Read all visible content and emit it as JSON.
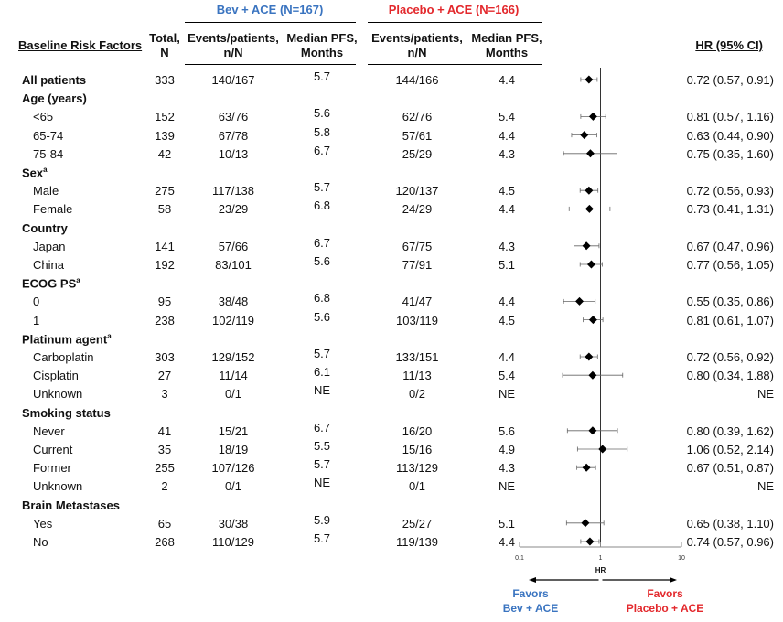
{
  "arms": {
    "bev_title": "Bev + ACE (N=167)",
    "placebo_title": "Placebo + ACE (N=166)",
    "bev_color": "#3a74c0",
    "placebo_color": "#e3282c"
  },
  "headers": {
    "factor": "Baseline Risk Factors",
    "total_line1": "Total,",
    "total_line2": "N",
    "events_line1": "Events/patients,",
    "events_line2": "n/N",
    "pfs_line1": "Median PFS,",
    "pfs_line2": "Months",
    "hr": "HR (95% CI)"
  },
  "rows": [
    {
      "label": "All patients",
      "group": true,
      "total": "333",
      "bev_events": "140/167",
      "bev_pfs": "5.7",
      "pl_events": "144/166",
      "pl_pfs": "4.4",
      "hr_text": "0.72 (0.57, 0.91)"
    },
    {
      "label": "Age (years)",
      "group": true,
      "total": "",
      "bev_events": "",
      "bev_pfs": "",
      "pl_events": "",
      "pl_pfs": "",
      "hr_text": ""
    },
    {
      "label": "<65",
      "group": false,
      "total": "152",
      "bev_events": "63/76",
      "bev_pfs": "5.6",
      "pl_events": "62/76",
      "pl_pfs": "5.4",
      "hr_text": "0.81 (0.57, 1.16)"
    },
    {
      "label": "65-74",
      "group": false,
      "total": "139",
      "bev_events": "67/78",
      "bev_pfs": "5.8",
      "pl_events": "57/61",
      "pl_pfs": "4.4",
      "hr_text": "0.63 (0.44, 0.90)"
    },
    {
      "label": "75-84",
      "group": false,
      "total": "42",
      "bev_events": "10/13",
      "bev_pfs": "6.7",
      "pl_events": "25/29",
      "pl_pfs": "4.3",
      "hr_text": "0.75 (0.35, 1.60)"
    },
    {
      "label": "Sex",
      "sup": "a",
      "group": true,
      "total": "",
      "bev_events": "",
      "bev_pfs": "",
      "pl_events": "",
      "pl_pfs": "",
      "hr_text": ""
    },
    {
      "label": "Male",
      "group": false,
      "total": "275",
      "bev_events": "117/138",
      "bev_pfs": "5.7",
      "pl_events": "120/137",
      "pl_pfs": "4.5",
      "hr_text": "0.72 (0.56, 0.93)"
    },
    {
      "label": "Female",
      "group": false,
      "total": "58",
      "bev_events": "23/29",
      "bev_pfs": "6.8",
      "pl_events": "24/29",
      "pl_pfs": "4.4",
      "hr_text": "0.73 (0.41, 1.31)"
    },
    {
      "label": "Country",
      "group": true,
      "total": "",
      "bev_events": "",
      "bev_pfs": "",
      "pl_events": "",
      "pl_pfs": "",
      "hr_text": ""
    },
    {
      "label": "Japan",
      "group": false,
      "total": "141",
      "bev_events": "57/66",
      "bev_pfs": "6.7",
      "pl_events": "67/75",
      "pl_pfs": "4.3",
      "hr_text": "0.67 (0.47, 0.96)"
    },
    {
      "label": "China",
      "group": false,
      "total": "192",
      "bev_events": "83/101",
      "bev_pfs": "5.6",
      "pl_events": "77/91",
      "pl_pfs": "5.1",
      "hr_text": "0.77 (0.56, 1.05)"
    },
    {
      "label": "ECOG PS",
      "sup": "a",
      "group": true,
      "total": "",
      "bev_events": "",
      "bev_pfs": "",
      "pl_events": "",
      "pl_pfs": "",
      "hr_text": ""
    },
    {
      "label": "0",
      "group": false,
      "total": "95",
      "bev_events": "38/48",
      "bev_pfs": "6.8",
      "pl_events": "41/47",
      "pl_pfs": "4.4",
      "hr_text": "0.55 (0.35, 0.86)"
    },
    {
      "label": "1",
      "group": false,
      "total": "238",
      "bev_events": "102/119",
      "bev_pfs": "5.6",
      "pl_events": "103/119",
      "pl_pfs": "4.5",
      "hr_text": "0.81 (0.61, 1.07)"
    },
    {
      "label": "Platinum agent",
      "sup": "a",
      "group": true,
      "total": "",
      "bev_events": "",
      "bev_pfs": "",
      "pl_events": "",
      "pl_pfs": "",
      "hr_text": ""
    },
    {
      "label": "Carboplatin",
      "group": false,
      "total": "303",
      "bev_events": "129/152",
      "bev_pfs": "5.7",
      "pl_events": "133/151",
      "pl_pfs": "4.4",
      "hr_text": "0.72 (0.56, 0.92)"
    },
    {
      "label": "Cisplatin",
      "group": false,
      "total": "27",
      "bev_events": "11/14",
      "bev_pfs": "6.1",
      "pl_events": "11/13",
      "pl_pfs": "5.4",
      "hr_text": "0.80 (0.34, 1.88)"
    },
    {
      "label": "Unknown",
      "group": false,
      "total": "3",
      "bev_events": "0/1",
      "bev_pfs": "NE",
      "pl_events": "0/2",
      "pl_pfs": "NE",
      "hr_text": "NE"
    },
    {
      "label": "Smoking status",
      "group": true,
      "total": "",
      "bev_events": "",
      "bev_pfs": "",
      "pl_events": "",
      "pl_pfs": "",
      "hr_text": ""
    },
    {
      "label": "Never",
      "group": false,
      "total": "41",
      "bev_events": "15/21",
      "bev_pfs": "6.7",
      "pl_events": "16/20",
      "pl_pfs": "5.6",
      "hr_text": "0.80 (0.39, 1.62)"
    },
    {
      "label": "Current",
      "group": false,
      "total": "35",
      "bev_events": "18/19",
      "bev_pfs": "5.5",
      "pl_events": "15/16",
      "pl_pfs": "4.9",
      "hr_text": "1.06 (0.52, 2.14)"
    },
    {
      "label": "Former",
      "group": false,
      "total": "255",
      "bev_events": "107/126",
      "bev_pfs": "5.7",
      "pl_events": "113/129",
      "pl_pfs": "4.3",
      "hr_text": "0.67 (0.51, 0.87)"
    },
    {
      "label": "Unknown",
      "group": false,
      "total": "2",
      "bev_events": "0/1",
      "bev_pfs": "NE",
      "pl_events": "0/1",
      "pl_pfs": "NE",
      "hr_text": "NE"
    },
    {
      "label": "Brain Metastases",
      "group": true,
      "total": "",
      "bev_events": "",
      "bev_pfs": "",
      "pl_events": "",
      "pl_pfs": "",
      "hr_text": ""
    },
    {
      "label": "Yes",
      "group": false,
      "total": "65",
      "bev_events": "30/38",
      "bev_pfs": "5.9",
      "pl_events": "25/27",
      "pl_pfs": "5.1",
      "hr_text": "0.65 (0.38, 1.10)"
    },
    {
      "label": "No",
      "group": false,
      "total": "268",
      "bev_events": "110/129",
      "bev_pfs": "5.7",
      "pl_events": "119/139",
      "pl_pfs": "4.4",
      "hr_text": "0.74 (0.57, 0.96)"
    }
  ],
  "chart_data": {
    "type": "scatter",
    "subtype": "forest",
    "xlabel": "HR",
    "xscale": "log",
    "xlim": [
      0.1,
      10
    ],
    "xticks": [
      "0.1",
      "1",
      "10"
    ],
    "reference_line": 1,
    "favors_left": [
      "Favors",
      "Bev + ACE"
    ],
    "favors_right": [
      "Favors",
      "Placebo + ACE"
    ],
    "points": [
      {
        "label": "All patients",
        "hr": 0.72,
        "lo": 0.57,
        "hi": 0.91
      },
      {
        "label": "<65",
        "hr": 0.81,
        "lo": 0.57,
        "hi": 1.16
      },
      {
        "label": "65-74",
        "hr": 0.63,
        "lo": 0.44,
        "hi": 0.9
      },
      {
        "label": "75-84",
        "hr": 0.75,
        "lo": 0.35,
        "hi": 1.6
      },
      {
        "label": "Male",
        "hr": 0.72,
        "lo": 0.56,
        "hi": 0.93
      },
      {
        "label": "Female",
        "hr": 0.73,
        "lo": 0.41,
        "hi": 1.31
      },
      {
        "label": "Japan",
        "hr": 0.67,
        "lo": 0.47,
        "hi": 0.96
      },
      {
        "label": "China",
        "hr": 0.77,
        "lo": 0.56,
        "hi": 1.05
      },
      {
        "label": "0",
        "hr": 0.55,
        "lo": 0.35,
        "hi": 0.86
      },
      {
        "label": "1",
        "hr": 0.81,
        "lo": 0.61,
        "hi": 1.07
      },
      {
        "label": "Carboplatin",
        "hr": 0.72,
        "lo": 0.56,
        "hi": 0.92
      },
      {
        "label": "Cisplatin",
        "hr": 0.8,
        "lo": 0.34,
        "hi": 1.88
      },
      {
        "label": "Never",
        "hr": 0.8,
        "lo": 0.39,
        "hi": 1.62
      },
      {
        "label": "Current",
        "hr": 1.06,
        "lo": 0.52,
        "hi": 2.14
      },
      {
        "label": "Former",
        "hr": 0.67,
        "lo": 0.51,
        "hi": 0.87
      },
      {
        "label": "Yes",
        "hr": 0.65,
        "lo": 0.38,
        "hi": 1.1
      },
      {
        "label": "No",
        "hr": 0.74,
        "lo": 0.57,
        "hi": 0.96
      }
    ]
  }
}
